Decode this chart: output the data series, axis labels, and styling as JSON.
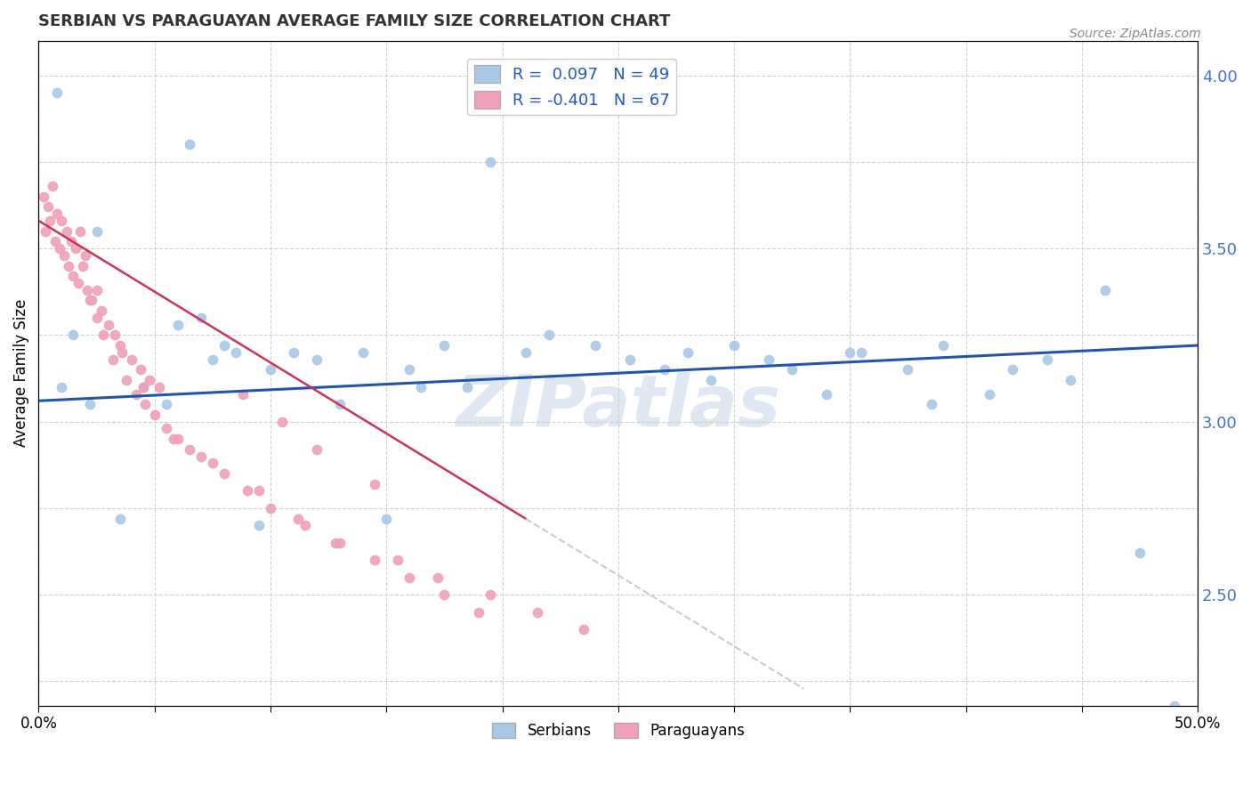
{
  "title": "SERBIAN VS PARAGUAYAN AVERAGE FAMILY SIZE CORRELATION CHART",
  "source_text": "Source: ZipAtlas.com",
  "ylabel": "Average Family Size",
  "xlim": [
    0.0,
    0.5
  ],
  "ylim": [
    2.18,
    4.1
  ],
  "yticks_right": [
    2.5,
    3.0,
    3.5,
    4.0
  ],
  "xticks": [
    0.0,
    0.5
  ],
  "xticklabels": [
    "0.0%",
    "50.0%"
  ],
  "serbian_color": "#a8c8e8",
  "paraguayan_color": "#f0a0b8",
  "serbian_line_color": "#2255aa",
  "paraguayan_line_solid": "#cc3355",
  "paraguayan_line_dashed": "#c8b8c8",
  "watermark": "ZIPatlas",
  "watermark_color": "#c8d8ea",
  "serbian_x": [
    0.195,
    0.008,
    0.065,
    0.025,
    0.015,
    0.06,
    0.07,
    0.08,
    0.075,
    0.085,
    0.1,
    0.11,
    0.12,
    0.14,
    0.16,
    0.175,
    0.055,
    0.21,
    0.24,
    0.255,
    0.27,
    0.28,
    0.3,
    0.315,
    0.35,
    0.375,
    0.39,
    0.01,
    0.022,
    0.045,
    0.13,
    0.185,
    0.29,
    0.34,
    0.42,
    0.46,
    0.49,
    0.035,
    0.095,
    0.15,
    0.165,
    0.22,
    0.41,
    0.445,
    0.325,
    0.355,
    0.385,
    0.435,
    0.475
  ],
  "serbian_y": [
    3.75,
    3.95,
    3.8,
    3.55,
    3.25,
    3.28,
    3.3,
    3.22,
    3.18,
    3.2,
    3.15,
    3.2,
    3.18,
    3.2,
    3.15,
    3.22,
    3.05,
    3.2,
    3.22,
    3.18,
    3.15,
    3.2,
    3.22,
    3.18,
    3.2,
    3.15,
    3.22,
    3.1,
    3.05,
    3.1,
    3.05,
    3.1,
    3.12,
    3.08,
    3.15,
    3.38,
    2.18,
    2.72,
    2.7,
    2.72,
    3.1,
    3.25,
    3.08,
    3.12,
    3.15,
    3.2,
    3.05,
    3.18,
    2.62
  ],
  "paraguayan_x": [
    0.002,
    0.004,
    0.006,
    0.008,
    0.01,
    0.012,
    0.014,
    0.016,
    0.018,
    0.02,
    0.003,
    0.005,
    0.007,
    0.009,
    0.011,
    0.013,
    0.015,
    0.017,
    0.019,
    0.021,
    0.022,
    0.025,
    0.027,
    0.03,
    0.033,
    0.036,
    0.04,
    0.044,
    0.048,
    0.052,
    0.025,
    0.028,
    0.032,
    0.038,
    0.042,
    0.046,
    0.05,
    0.055,
    0.06,
    0.065,
    0.07,
    0.08,
    0.09,
    0.1,
    0.115,
    0.13,
    0.145,
    0.16,
    0.175,
    0.19,
    0.023,
    0.035,
    0.045,
    0.058,
    0.075,
    0.095,
    0.112,
    0.128,
    0.155,
    0.172,
    0.195,
    0.215,
    0.235,
    0.145,
    0.12,
    0.105,
    0.088
  ],
  "paraguayan_y": [
    3.65,
    3.62,
    3.68,
    3.6,
    3.58,
    3.55,
    3.52,
    3.5,
    3.55,
    3.48,
    3.55,
    3.58,
    3.52,
    3.5,
    3.48,
    3.45,
    3.42,
    3.4,
    3.45,
    3.38,
    3.35,
    3.38,
    3.32,
    3.28,
    3.25,
    3.2,
    3.18,
    3.15,
    3.12,
    3.1,
    3.3,
    3.25,
    3.18,
    3.12,
    3.08,
    3.05,
    3.02,
    2.98,
    2.95,
    2.92,
    2.9,
    2.85,
    2.8,
    2.75,
    2.7,
    2.65,
    2.6,
    2.55,
    2.5,
    2.45,
    3.35,
    3.22,
    3.1,
    2.95,
    2.88,
    2.8,
    2.72,
    2.65,
    2.6,
    2.55,
    2.5,
    2.45,
    2.4,
    2.82,
    2.92,
    3.0,
    3.08
  ],
  "para_trend_x0": 0.0,
  "para_trend_y0": 3.58,
  "para_trend_x1": 0.21,
  "para_trend_y1": 2.72,
  "serb_trend_x0": 0.0,
  "serb_trend_y0": 3.06,
  "serb_trend_x1": 0.5,
  "serb_trend_y1": 3.22
}
